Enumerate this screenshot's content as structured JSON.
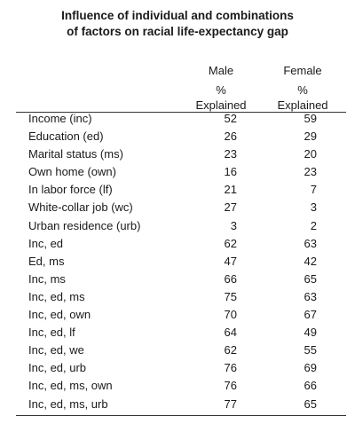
{
  "title_line1": "Influence of individual and combinations",
  "title_line2": "of factors on racial life-expectancy gap",
  "headers": {
    "male": "Male",
    "female": "Female",
    "percent": "%",
    "explained": "Explained"
  },
  "rows": [
    {
      "label": "Income (inc)",
      "male": "52",
      "female": "59"
    },
    {
      "label": "Education (ed)",
      "male": "26",
      "female": "29"
    },
    {
      "label": "Marital status (ms)",
      "male": "23",
      "female": "20"
    },
    {
      "label": "Own home (own)",
      "male": "16",
      "female": "23"
    },
    {
      "label": "In labor force (lf)",
      "male": "21",
      "female": "7"
    },
    {
      "label": "White-collar job (wc)",
      "male": "27",
      "female": "3"
    },
    {
      "label": "Urban residence (urb)",
      "male": "3",
      "female": "2"
    },
    {
      "label": "Inc, ed",
      "male": "62",
      "female": "63"
    },
    {
      "label": "Ed, ms",
      "male": "47",
      "female": "42"
    },
    {
      "label": "Inc, ms",
      "male": "66",
      "female": "65"
    },
    {
      "label": "Inc, ed, ms",
      "male": "75",
      "female": "63"
    },
    {
      "label": "Inc, ed, own",
      "male": "70",
      "female": "67"
    },
    {
      "label": "Inc, ed, lf",
      "male": "64",
      "female": "49"
    },
    {
      "label": "Inc, ed, we",
      "male": "62",
      "female": "55"
    },
    {
      "label": "Inc, ed, urb",
      "male": "76",
      "female": "69"
    },
    {
      "label": "Inc, ed, ms, own",
      "male": "76",
      "female": "66"
    },
    {
      "label": "Inc, ed, ms, urb",
      "male": "77",
      "female": "65"
    }
  ]
}
